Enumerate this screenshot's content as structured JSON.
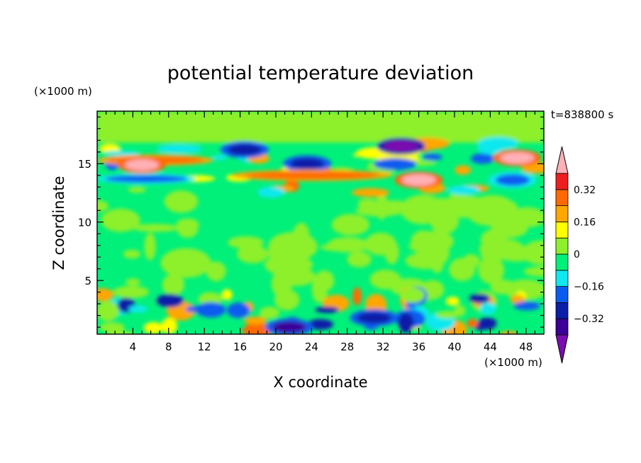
{
  "chart_data": {
    "type": "heatmap",
    "title": "potential temperature deviation",
    "xlabel": "X coordinate",
    "ylabel": "Z coordinate",
    "x_units": "(×1000 m)",
    "y_units": "(×1000 m)",
    "time_label": "t=838800 s",
    "xlim": [
      0,
      50
    ],
    "ylim": [
      0.4,
      19.5
    ],
    "x_ticks": [
      4,
      8,
      12,
      16,
      20,
      24,
      28,
      32,
      36,
      40,
      44,
      48
    ],
    "y_ticks": [
      5,
      10,
      15
    ],
    "colorbar": {
      "levels": [
        -0.4,
        -0.32,
        -0.24,
        -0.16,
        -0.08,
        0,
        0.08,
        0.16,
        0.24,
        0.32,
        0.4
      ],
      "labeled_levels": [
        0.32,
        0.16,
        0,
        -0.16,
        -0.32
      ],
      "labels": [
        "0.32",
        "0.16",
        "0",
        "−0.16",
        "−0.32"
      ],
      "colors": [
        "#7a0cb0",
        "#3a0097",
        "#0a1ea8",
        "#0a5cf0",
        "#10e8ee",
        "#00f07a",
        "#8ef02c",
        "#ffff00",
        "#ffa600",
        "#ff6a00",
        "#ee1e1e",
        "#ffb0b6"
      ],
      "extend": "both"
    },
    "features": [
      {
        "kind": "band",
        "y": 15.3,
        "x": [
          0,
          13
        ],
        "value": 0.3
      },
      {
        "kind": "blob",
        "x": 5,
        "y": 14.9,
        "value": 0.45
      },
      {
        "kind": "band",
        "y": 13.7,
        "x": [
          0,
          11
        ],
        "value": -0.18
      },
      {
        "kind": "blob",
        "x": 34,
        "y": 16.5,
        "value": -0.42
      },
      {
        "kind": "blob",
        "x": 23.5,
        "y": 15.0,
        "value": -0.3
      },
      {
        "kind": "blob",
        "x": 16.5,
        "y": 16.2,
        "value": -0.28
      },
      {
        "kind": "band",
        "y": 14.0,
        "x": [
          15,
          33
        ],
        "value": 0.28
      },
      {
        "kind": "blob",
        "x": 36,
        "y": 13.6,
        "value": 0.45
      },
      {
        "kind": "blob",
        "x": 47,
        "y": 15.5,
        "value": 0.45
      },
      {
        "kind": "blob",
        "x": 46.5,
        "y": 13.6,
        "value": -0.2
      },
      {
        "kind": "blob",
        "x": 21.5,
        "y": 1.0,
        "value": -0.35
      },
      {
        "kind": "blob",
        "x": 31,
        "y": 1.8,
        "value": -0.3
      }
    ]
  }
}
